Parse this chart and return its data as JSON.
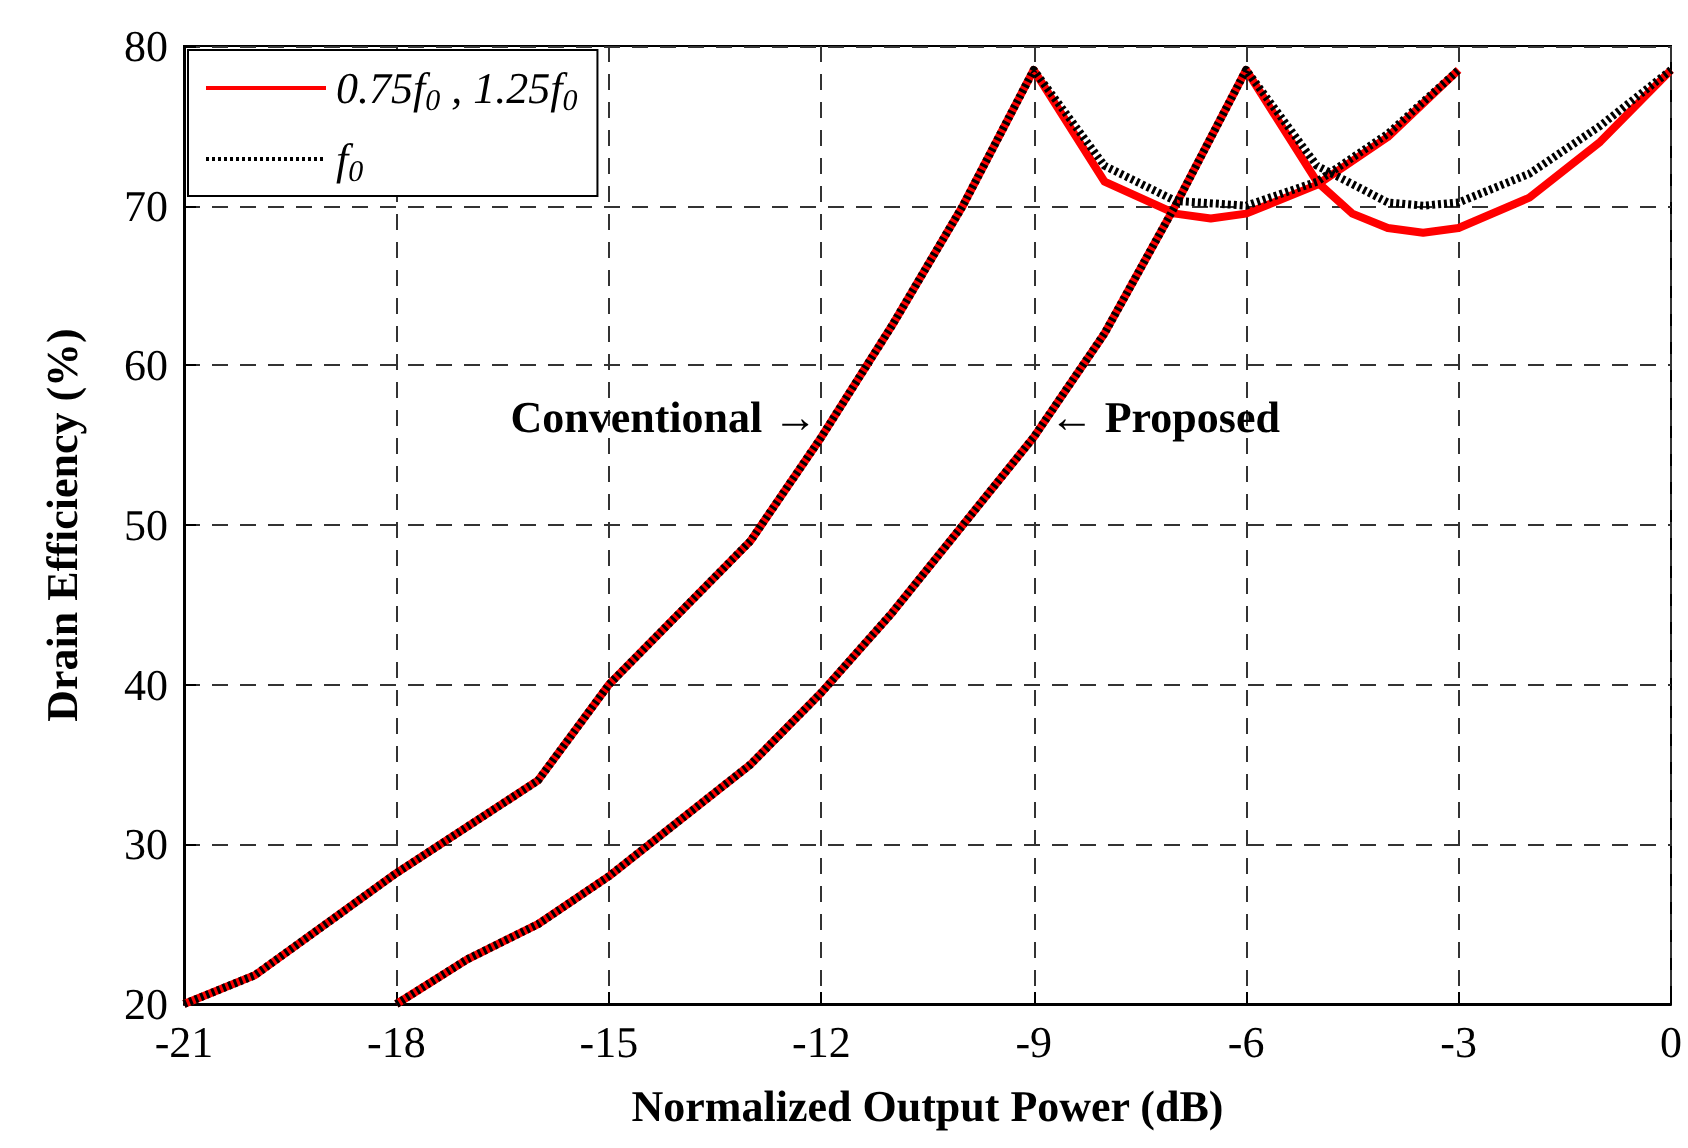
{
  "chart_data": {
    "type": "line",
    "xlabel": "Normalized Output Power (dB)",
    "ylabel": "Drain Efficiency (%)",
    "xlim": [
      -21,
      0
    ],
    "xticks": [
      -21,
      -18,
      -15,
      -12,
      -9,
      -6,
      -3,
      0
    ],
    "ylim": [
      20,
      80
    ],
    "yticks": [
      20,
      30,
      40,
      50,
      60,
      70,
      80
    ],
    "grid": true,
    "legend": "top left",
    "marker": "none",
    "series": [
      {
        "name": "0.75f$_{0}$ , 1.25f$_{0}$",
        "color": "#ff0000",
        "line_style": "solid",
        "x": [
          -21,
          -20,
          -18,
          -16,
          -15,
          -13,
          -12,
          -11,
          -10,
          -9,
          -8,
          -7,
          -6.5,
          -6,
          -5,
          -4,
          -3
        ],
        "values": [
          20,
          21.8,
          28.2,
          34,
          40,
          49,
          55.5,
          62.5,
          70,
          78.5,
          71.5,
          69.5,
          69.2,
          69.5,
          71.3,
          74.3,
          78.5
        ]
      },
      {
        "color": "#ff0000",
        "line_style": "solid",
        "x": [
          -18,
          -17,
          -16,
          -15,
          -14,
          -13,
          -12,
          -11,
          -10,
          -9,
          -8,
          -7,
          -6,
          -5,
          -4.5,
          -4,
          -3.5,
          -3,
          -2,
          -1,
          0
        ],
        "values": [
          20,
          22.8,
          25,
          28,
          31.5,
          35,
          39.5,
          44.5,
          50,
          55.5,
          62,
          70,
          78.5,
          71.5,
          69.5,
          68.6,
          68.3,
          68.6,
          70.5,
          74,
          78.5
        ]
      },
      {
        "name": "f$_{0}$",
        "color": "#000000",
        "line_style": "dotted",
        "x": [
          -21,
          -20,
          -18,
          -16,
          -15,
          -13,
          -12,
          -11,
          -10,
          -9,
          -8,
          -7,
          -6,
          -5,
          -4,
          -3
        ],
        "values": [
          20,
          21.8,
          28.2,
          34,
          40,
          49,
          55.5,
          62.5,
          70,
          78.5,
          72.5,
          70.3,
          70,
          71.5,
          74.5,
          78.5
        ]
      },
      {
        "color": "#000000",
        "line_style": "dotted",
        "x": [
          -18,
          -17,
          -16,
          -15,
          -14,
          -13,
          -12,
          -11,
          -10,
          -9,
          -8,
          -7,
          -6,
          -5,
          -4,
          -3.5,
          -3,
          -2,
          -1,
          0
        ],
        "values": [
          20,
          22.8,
          25,
          28,
          31.5,
          35,
          39.5,
          44.5,
          50,
          55.5,
          62,
          70,
          78.5,
          72.5,
          70.2,
          70,
          70.2,
          72,
          75,
          78.5
        ]
      }
    ],
    "annotations": [
      {
        "text": "Conventional →",
        "x": -12,
        "y": 55.5
      },
      {
        "text": "← Proposed",
        "x": -9,
        "y": 55.5
      }
    ]
  }
}
